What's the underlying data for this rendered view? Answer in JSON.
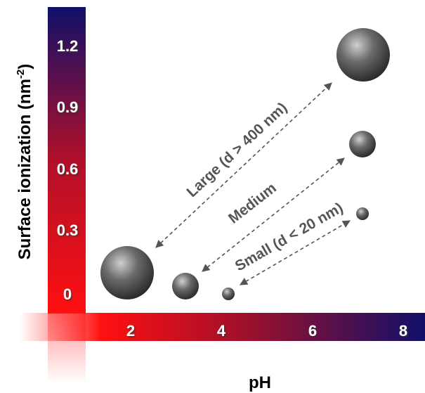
{
  "y_axis": {
    "label": "Surface ionization (nm",
    "label_superscript": "-2",
    "label_end": ")",
    "ticks": [
      "1.2",
      "0.9",
      "0.6",
      "0.3",
      "0"
    ]
  },
  "x_axis": {
    "label": "pH",
    "ticks": [
      "2",
      "4",
      "6",
      "8"
    ]
  },
  "annotations": [
    "Large (d > 400 nm)",
    "Medium",
    "Small (d < 20 nm)"
  ]
}
